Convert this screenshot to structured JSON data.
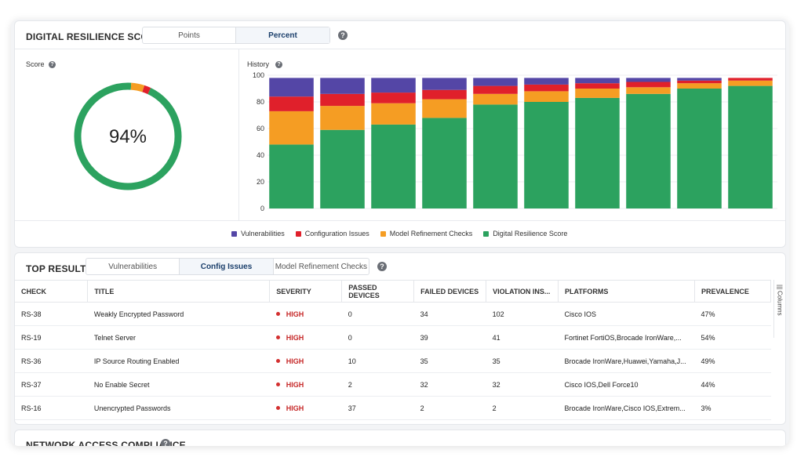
{
  "resilience": {
    "title": "DIGITAL RESILIENCE SCORE",
    "toggle": [
      "Points",
      "Percent"
    ],
    "active_toggle": 1,
    "score_label": "Score",
    "score_value": "94%",
    "score_fraction": 0.94,
    "history_label": "History",
    "help_symbol": "?"
  },
  "chart_data": {
    "type": "bar",
    "stacked": true,
    "categories": [
      "",
      "",
      "",
      "",
      "",
      "",
      "",
      "",
      "",
      ""
    ],
    "ylim": [
      0,
      100
    ],
    "yticks": [
      0,
      20,
      40,
      60,
      80,
      100
    ],
    "series": [
      {
        "name": "Digital Resilience Score",
        "color": "#2ca25f",
        "values": [
          48,
          59,
          63,
          68,
          78,
          80,
          83,
          86,
          90,
          92
        ]
      },
      {
        "name": "Model Refinement Checks",
        "color": "#f59d23",
        "values": [
          25,
          18,
          16,
          14,
          8,
          8,
          7,
          5,
          4,
          4
        ]
      },
      {
        "name": "Configuration Issues",
        "color": "#e0202b",
        "values": [
          11,
          9,
          8,
          7,
          6,
          5,
          4,
          4,
          2,
          2
        ]
      },
      {
        "name": "Vulnerabilities",
        "color": "#5446a6",
        "values": [
          14,
          12,
          11,
          9,
          6,
          5,
          4,
          3,
          2,
          0
        ]
      }
    ],
    "legend_order": [
      "Vulnerabilities",
      "Configuration Issues",
      "Model Refinement Checks",
      "Digital Resilience Score"
    ],
    "legend_position": "bottom-center",
    "grid": true
  },
  "top_results": {
    "title": "TOP RESULTS",
    "tabs": [
      "Vulnerabilities",
      "Config Issues",
      "Model Refinement Checks"
    ],
    "active_tab": 1,
    "columns": [
      "CHECK",
      "TITLE",
      "SEVERITY",
      "PASSED DEVICES",
      "FAILED DEVICES",
      "VIOLATION INS...",
      "PLATFORMS",
      "PREVALENCE"
    ],
    "rows": [
      {
        "check": "RS-38",
        "title": "Weakly Encrypted Password",
        "severity": "HIGH",
        "passed": "0",
        "failed": "34",
        "violations": "102",
        "platforms": "Cisco IOS",
        "prevalence": "47%"
      },
      {
        "check": "RS-19",
        "title": "Telnet Server",
        "severity": "HIGH",
        "passed": "0",
        "failed": "39",
        "violations": "41",
        "platforms": "Fortinet FortiOS,Brocade IronWare,...",
        "prevalence": "54%"
      },
      {
        "check": "RS-36",
        "title": "IP Source Routing Enabled",
        "severity": "HIGH",
        "passed": "10",
        "failed": "35",
        "violations": "35",
        "platforms": "Brocade IronWare,Huawei,Yamaha,J...",
        "prevalence": "49%"
      },
      {
        "check": "RS-37",
        "title": "No Enable Secret",
        "severity": "HIGH",
        "passed": "2",
        "failed": "32",
        "violations": "32",
        "platforms": "Cisco IOS,Dell Force10",
        "prevalence": "44%"
      },
      {
        "check": "RS-16",
        "title": "Unencrypted Passwords",
        "severity": "HIGH",
        "passed": "37",
        "failed": "2",
        "violations": "2",
        "platforms": "Brocade IronWare,Cisco IOS,Extrem...",
        "prevalence": "3%"
      }
    ],
    "columns_tab": "Columns"
  },
  "network_access": {
    "title": "NETWORK ACCESS COMPLIANCE"
  },
  "colors": {
    "score_green": "#2ca25f",
    "score_orange": "#f59d23",
    "score_red": "#e0202b",
    "severity_high": "#c62828",
    "active_toggle_text": "#1b3f6b"
  }
}
